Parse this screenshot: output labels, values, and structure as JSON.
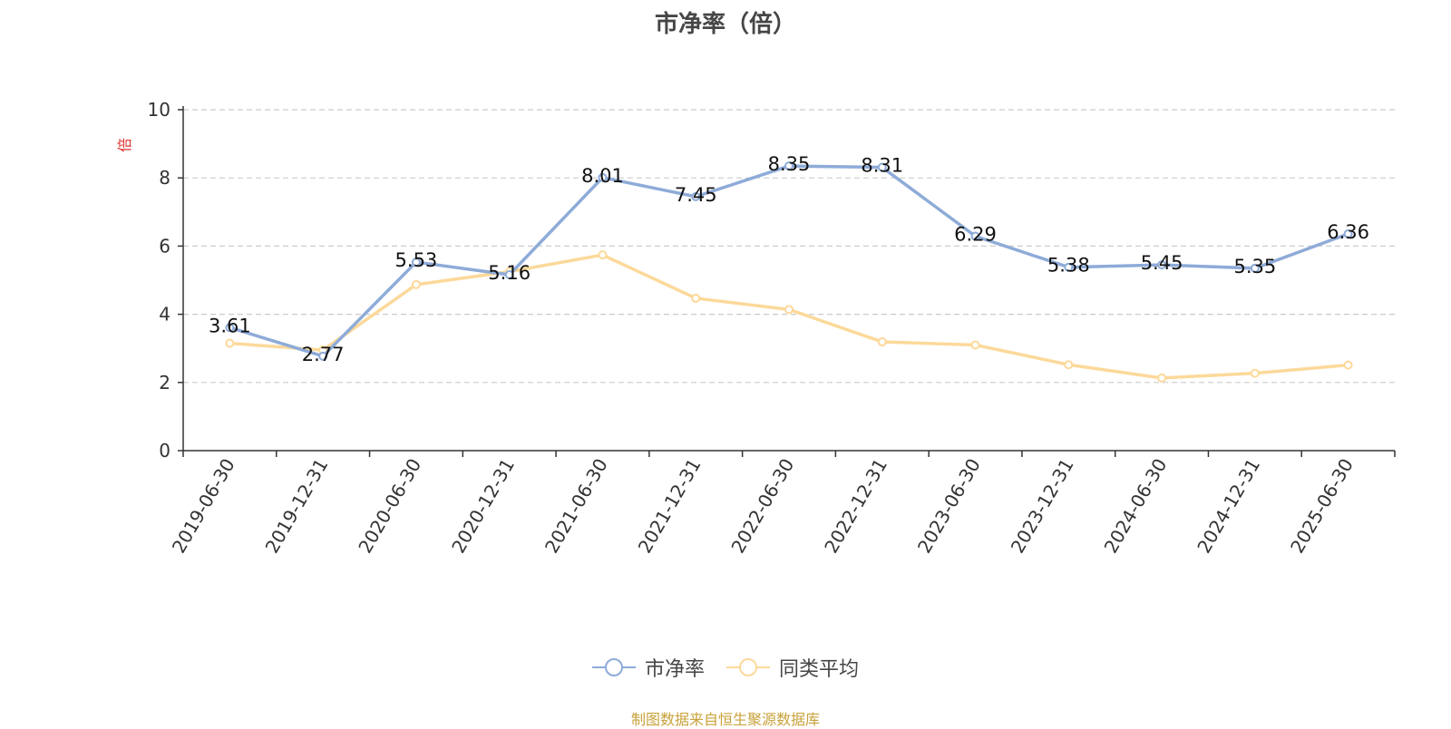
{
  "chart_data": {
    "type": "line",
    "title": "市净率（倍）",
    "ylabel": "倍",
    "xlabel": "",
    "ylim": [
      0,
      10
    ],
    "yticks": [
      0,
      2,
      4,
      6,
      8,
      10
    ],
    "grid": true,
    "legend_position": "bottom",
    "categories": [
      "2019-06-30",
      "2019-12-31",
      "2020-06-30",
      "2020-12-31",
      "2021-06-30",
      "2021-12-31",
      "2022-06-30",
      "2022-12-31",
      "2023-06-30",
      "2023-12-31",
      "2024-06-30",
      "2024-12-31",
      "2025-06-30"
    ],
    "series": [
      {
        "name": "市净率",
        "color": "#8eabd8",
        "show_labels": true,
        "values": [
          3.61,
          2.77,
          5.53,
          5.16,
          8.01,
          7.45,
          8.35,
          8.31,
          6.29,
          5.38,
          5.45,
          5.35,
          6.36
        ]
      },
      {
        "name": "同类平均",
        "color": "#fcd99a",
        "show_labels": false,
        "values": [
          3.15,
          2.95,
          4.87,
          5.25,
          5.74,
          4.47,
          4.14,
          3.19,
          3.1,
          2.52,
          2.13,
          2.27,
          2.51
        ]
      }
    ]
  },
  "source_note": "制图数据来自恒生聚源数据库"
}
